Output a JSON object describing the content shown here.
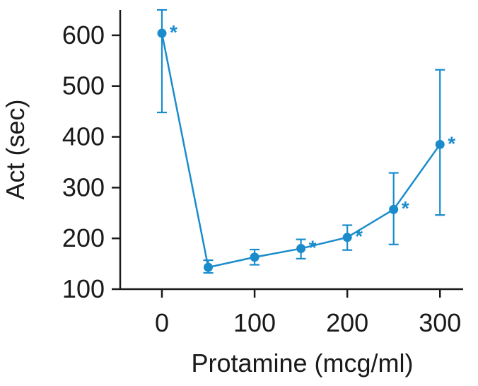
{
  "chart_data": {
    "type": "line",
    "xlabel": "Protamine (mcg/ml)",
    "ylabel": "Act (sec)",
    "xlim": [
      -45,
      325
    ],
    "ylim": [
      100,
      650
    ],
    "xticks": [
      0,
      100,
      200,
      300
    ],
    "yticks": [
      100,
      200,
      300,
      400,
      500,
      600
    ],
    "grid": false,
    "color": "#1a8ccc",
    "series": [
      {
        "points": [
          {
            "x": 0,
            "y": 604,
            "low": 448,
            "high": 650,
            "sig": "*"
          },
          {
            "x": 50,
            "y": 143,
            "low": 132,
            "high": 157,
            "sig": ""
          },
          {
            "x": 100,
            "y": 163,
            "low": 148,
            "high": 178,
            "sig": ""
          },
          {
            "x": 150,
            "y": 180,
            "low": 160,
            "high": 198,
            "sig": "*"
          },
          {
            "x": 200,
            "y": 202,
            "low": 177,
            "high": 226,
            "sig": "*"
          },
          {
            "x": 250,
            "y": 257,
            "low": 188,
            "high": 329,
            "sig": "*"
          },
          {
            "x": 300,
            "y": 385,
            "low": 246,
            "high": 532,
            "sig": "*"
          }
        ]
      }
    ]
  }
}
